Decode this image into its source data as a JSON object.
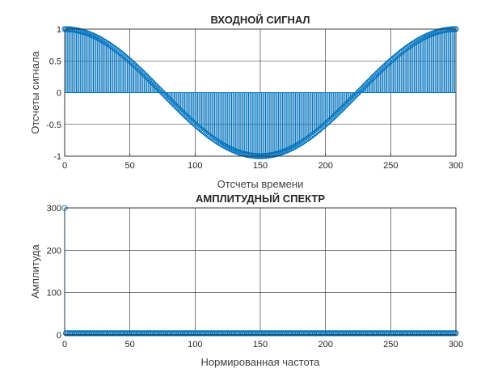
{
  "chart_data": [
    {
      "type": "stem",
      "title": "ВХОДНОЙ СИГНАЛ",
      "xlabel": "Отсчеты времени",
      "ylabel": "Отсчеты сигнала",
      "xlim": [
        0,
        300
      ],
      "ylim": [
        -1,
        1
      ],
      "xticks": [
        "0",
        "50",
        "100",
        "150",
        "200",
        "250",
        "300"
      ],
      "yticks": [
        "-1",
        "-0.5",
        "0",
        "0.5",
        "1"
      ],
      "grid": true,
      "series": [
        {
          "color": "#0072bd",
          "marker": "circle",
          "x_start": 0,
          "x_end": 300,
          "x_step": 1,
          "formula": "cos(2*pi*n/300)"
        }
      ]
    },
    {
      "type": "stem",
      "title": "АМПЛИТУДНЫЙ СПЕКТР",
      "xlabel": "Нормированная частота",
      "ylabel": "Амплитуда",
      "xlim": [
        0,
        300
      ],
      "ylim": [
        0,
        300
      ],
      "xticks": [
        "0",
        "50",
        "100",
        "150",
        "200",
        "250",
        "300"
      ],
      "yticks": [
        "0",
        "100",
        "200",
        "300"
      ],
      "grid": true,
      "series": [
        {
          "color": "#0072bd",
          "marker": "circle",
          "x_start": 0,
          "x_end": 300,
          "x_step": 1,
          "peaks": [
            {
              "x": 0,
              "y": 300
            },
            {
              "x": 300,
              "y": 4
            }
          ],
          "baseline_value": 4
        }
      ]
    }
  ]
}
